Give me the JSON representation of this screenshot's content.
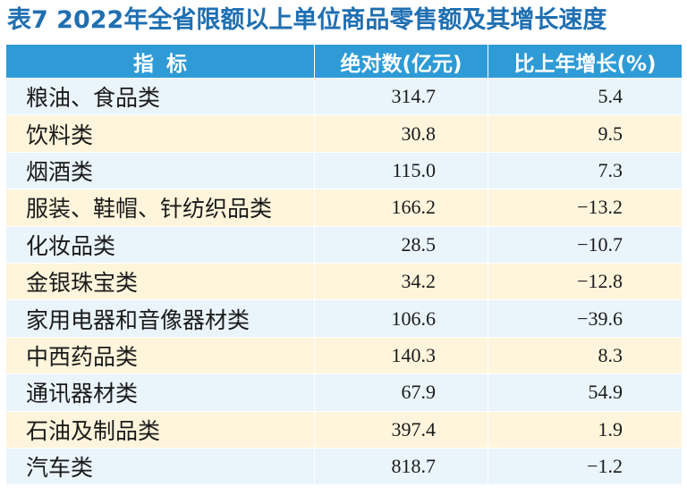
{
  "title": "表7  2022年全省限额以上单位商品零售额及其增长速度",
  "headers": [
    "指标",
    "绝对数(亿元)",
    "比上年增长(%)"
  ],
  "rows": [
    {
      "name": "粮油、食品类",
      "value": "314.7",
      "growth": "5.4"
    },
    {
      "name": "饮料类",
      "value": "30.8",
      "growth": "9.5"
    },
    {
      "name": "烟酒类",
      "value": "115.0",
      "growth": "7.3"
    },
    {
      "name": "服装、鞋帽、针纺织品类",
      "value": "166.2",
      "growth": "−13.2"
    },
    {
      "name": "化妆品类",
      "value": "28.5",
      "growth": "−10.7"
    },
    {
      "name": "金银珠宝类",
      "value": "34.2",
      "growth": "−12.8"
    },
    {
      "name": "家用电器和音像器材类",
      "value": "106.6",
      "growth": "−39.6"
    },
    {
      "name": "中西药品类",
      "value": "140.3",
      "growth": "8.3"
    },
    {
      "name": "通讯器材类",
      "value": "67.9",
      "growth": "54.9"
    },
    {
      "name": "石油及制品类",
      "value": "397.4",
      "growth": "1.9"
    },
    {
      "name": "汽车类",
      "value": "818.7",
      "growth": "−1.2"
    }
  ],
  "colors": {
    "title": "#1f6fb2",
    "header_bg": "#2e9bd6",
    "row_a": "#fff5dc",
    "row_b": "#eaf4fb"
  }
}
